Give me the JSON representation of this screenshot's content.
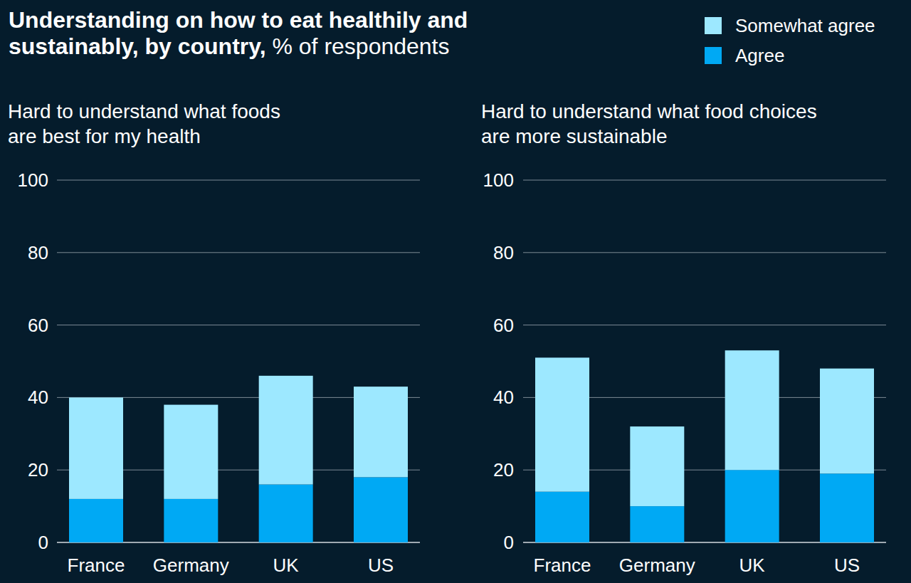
{
  "header": {
    "title": "Understanding on how to eat healthily and sustainably, by country,",
    "subtitle": "% of respondents"
  },
  "chart_data": [
    {
      "type": "bar",
      "title": "Hard to understand what foods are best for my health",
      "categories": [
        "France",
        "Germany",
        "UK",
        "US"
      ],
      "series": [
        {
          "name": "Agree",
          "color": "#00a9f4",
          "values": [
            12,
            12,
            16,
            18
          ]
        },
        {
          "name": "Somewhat agree",
          "color": "#9de8ff",
          "values": [
            28,
            26,
            30,
            25
          ]
        }
      ],
      "stacked": true,
      "ylim": [
        0,
        100
      ],
      "yticks": [
        0,
        20,
        40,
        60,
        80,
        100
      ],
      "grid": true,
      "legend": "top-right"
    },
    {
      "type": "bar",
      "title": "Hard to understand what food choices are more sustainable",
      "categories": [
        "France",
        "Germany",
        "UK",
        "US"
      ],
      "series": [
        {
          "name": "Agree",
          "color": "#00a9f4",
          "values": [
            14,
            10,
            20,
            19
          ]
        },
        {
          "name": "Somewhat agree",
          "color": "#9de8ff",
          "values": [
            37,
            22,
            33,
            29
          ]
        }
      ],
      "stacked": true,
      "ylim": [
        0,
        100
      ],
      "yticks": [
        0,
        20,
        40,
        60,
        80,
        100
      ],
      "grid": true
    }
  ]
}
